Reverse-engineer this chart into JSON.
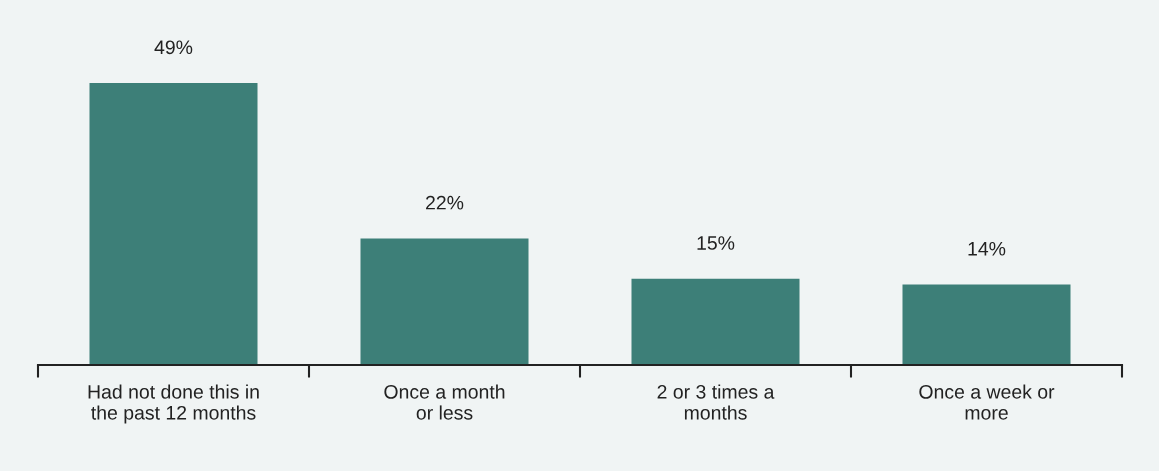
{
  "chart_data": {
    "type": "bar",
    "categories": [
      "Had not done this in\nthe past 12 months",
      "Once a month\nor less",
      "2 or 3 times a\nmonths",
      "Once a week or\nmore"
    ],
    "values": [
      49,
      22,
      15,
      14
    ],
    "value_labels": [
      "49%",
      "22%",
      "15%",
      "14%"
    ],
    "color": "#3d7f78",
    "grid": false,
    "legend": false
  }
}
